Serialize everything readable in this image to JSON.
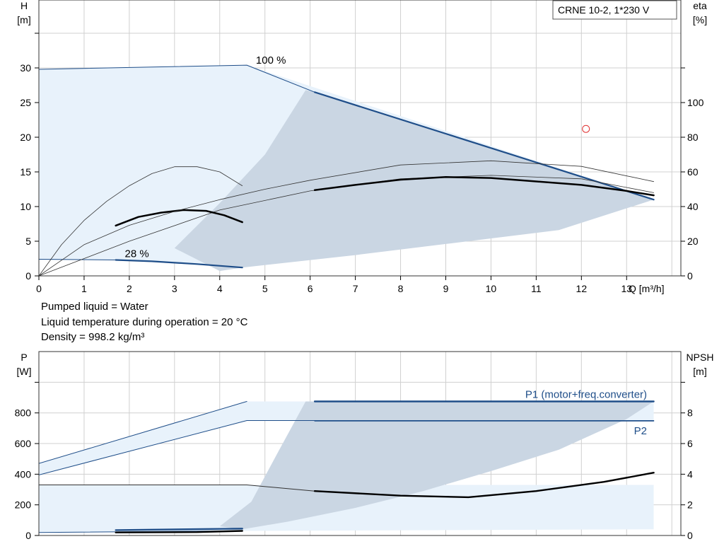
{
  "title_box": "CRNE 10-2, 1*230 V",
  "info_lines": [
    "Pumped liquid = Water",
    "Liquid temperature during operation = 20 °C",
    "Density = 998.2 kg/m³"
  ],
  "colors": {
    "dark_blue": "#1f4e89",
    "light_fill": "#e8f2fb",
    "grey_fill": "#cad6e3",
    "grid": "#d0d0d0",
    "marker": "#e03030"
  },
  "chart_data": [
    {
      "type": "line",
      "name": "performance",
      "ylabel_left": [
        "H",
        "[m]"
      ],
      "ylabel_right": [
        "eta",
        "[%]"
      ],
      "xlabel": "Q [m³/h]",
      "xlim": [
        0,
        14.2
      ],
      "ylim": [
        0,
        35
      ],
      "ylim_right": [
        0,
        140
      ],
      "x_ticks": [
        0,
        1,
        2,
        3,
        4,
        5,
        6,
        7,
        8,
        9,
        10,
        11,
        12,
        13
      ],
      "y_ticks": [
        0,
        5,
        10,
        15,
        20,
        25,
        30
      ],
      "y2_ticks": [
        0,
        20,
        40,
        60,
        80,
        100
      ],
      "speed_labels": [
        {
          "text": "100 %",
          "x": 4.8,
          "y": 30.4
        },
        {
          "text": "28 %",
          "x": 1.9,
          "y": 2.5
        }
      ],
      "range_area": [
        [
          0,
          29.8
        ],
        [
          4.6,
          30.4
        ],
        [
          13.6,
          11.0
        ],
        [
          4.5,
          1.2
        ],
        [
          1.7,
          2.3
        ],
        [
          0,
          2.3
        ]
      ],
      "operating_area": [
        [
          6.1,
          26.5
        ],
        [
          13.6,
          11.0
        ],
        [
          11.5,
          6.6
        ],
        [
          9.0,
          4.6
        ],
        [
          7.0,
          3.0
        ],
        [
          4.5,
          1.2
        ],
        [
          4.0,
          0.7
        ],
        [
          3.0,
          4.0
        ],
        [
          4.0,
          10.5
        ],
        [
          5.0,
          17.5
        ],
        [
          5.9,
          26.8
        ]
      ],
      "series": [
        {
          "name": "H 100%",
          "role": "head-thin",
          "points": [
            [
              0,
              29.8
            ],
            [
              4.6,
              30.4
            ],
            [
              6.1,
              26.5
            ]
          ]
        },
        {
          "name": "H 100% duty",
          "role": "head-duty",
          "points": [
            [
              6.1,
              26.5
            ],
            [
              13.6,
              11.0
            ]
          ]
        },
        {
          "name": "H 28%",
          "role": "head-thin",
          "points": [
            [
              0,
              2.4
            ],
            [
              1.7,
              2.3
            ]
          ]
        },
        {
          "name": "H 28% duty",
          "role": "head-duty",
          "points": [
            [
              1.7,
              2.3
            ],
            [
              2.5,
              2.1
            ],
            [
              3.5,
              1.7
            ],
            [
              4.5,
              1.2
            ]
          ]
        },
        {
          "name": "eta 100%",
          "role": "eta-thin",
          "axis": "right",
          "points": [
            [
              0,
              0
            ],
            [
              2,
              20
            ],
            [
              4,
              38
            ],
            [
              6,
              49
            ],
            [
              8,
              56
            ],
            [
              10,
              58
            ],
            [
              12,
              56
            ],
            [
              13.6,
              48
            ]
          ]
        },
        {
          "name": "eta 100% duty",
          "role": "eta-duty",
          "axis": "right",
          "points": [
            [
              6.1,
              49.5
            ],
            [
              7,
              52.5
            ],
            [
              8,
              55.5
            ],
            [
              9,
              57
            ],
            [
              10,
              56.5
            ],
            [
              11,
              54.5
            ],
            [
              12,
              52.5
            ],
            [
              13,
              49
            ],
            [
              13.6,
              46.5
            ]
          ]
        },
        {
          "name": "eta 28%",
          "role": "eta-thin",
          "axis": "right",
          "points": [
            [
              0,
              0
            ],
            [
              0.5,
              18
            ],
            [
              1,
              32
            ],
            [
              1.5,
              43
            ],
            [
              2,
              52
            ],
            [
              2.5,
              59
            ],
            [
              3,
              63
            ],
            [
              3.5,
              63
            ],
            [
              4,
              60
            ],
            [
              4.5,
              52
            ]
          ]
        },
        {
          "name": "eta 28% duty",
          "role": "eta-duty",
          "axis": "right",
          "points": [
            [
              1.7,
              29
            ],
            [
              2.2,
              34
            ],
            [
              2.7,
              36.5
            ],
            [
              3.2,
              38
            ],
            [
              3.7,
              37.5
            ],
            [
              4.1,
              35
            ],
            [
              4.5,
              31
            ]
          ]
        },
        {
          "name": "H thin low",
          "role": "eta-thin",
          "points": [
            [
              0,
              0
            ],
            [
              1,
              4.5
            ],
            [
              2,
              7.3
            ],
            [
              3,
              9.3
            ],
            [
              4,
              11.0
            ],
            [
              5,
              12.5
            ],
            [
              6,
              13.8
            ],
            [
              8,
              16.0
            ],
            [
              10,
              16.6
            ],
            [
              12,
              15.8
            ],
            [
              13.6,
              13.6
            ]
          ]
        }
      ],
      "markers": [
        {
          "x": 12.1,
          "y": 21.2,
          "shape": "circle"
        }
      ]
    },
    {
      "type": "line",
      "name": "power",
      "ylabel_left": [
        "P",
        "[W]"
      ],
      "ylabel_right": [
        "NPSH",
        "[m]"
      ],
      "xlim": [
        0,
        14.2
      ],
      "ylim": [
        0,
        1000
      ],
      "ylim_right": [
        0,
        10
      ],
      "y_ticks": [
        0,
        200,
        400,
        600,
        800
      ],
      "y2_ticks": [
        0,
        2,
        4,
        6,
        8
      ],
      "series_labels": [
        {
          "text": "P1 (motor+freq.converter)",
          "x": 13.45,
          "y": 898
        },
        {
          "text": "P2",
          "x": 13.45,
          "y": 660
        }
      ],
      "range_area": [
        [
          0,
          470
        ],
        [
          4.6,
          875
        ],
        [
          13.6,
          875
        ],
        [
          13.6,
          750
        ],
        [
          4.6,
          750
        ],
        [
          0,
          395
        ],
        [
          0,
          330
        ],
        [
          4.6,
          330
        ],
        [
          13.6,
          330
        ],
        [
          13.6,
          40
        ],
        [
          4.5,
          30
        ],
        [
          1.7,
          25
        ],
        [
          0,
          20
        ]
      ],
      "operating_area": [
        [
          5.9,
          875
        ],
        [
          13.6,
          875
        ],
        [
          13.0,
          760
        ],
        [
          11.5,
          560
        ],
        [
          10.0,
          420
        ],
        [
          8.5,
          290
        ],
        [
          7.0,
          180
        ],
        [
          5.5,
          90
        ],
        [
          4.5,
          40
        ],
        [
          4.0,
          60
        ],
        [
          4.7,
          220
        ],
        [
          5.3,
          550
        ],
        [
          5.9,
          875
        ]
      ],
      "series": [
        {
          "name": "P1 100%",
          "role": "p-thin",
          "points": [
            [
              0,
              470
            ],
            [
              4.6,
              875
            ]
          ]
        },
        {
          "name": "P1 100% duty",
          "role": "p-duty",
          "points": [
            [
              6.1,
              875
            ],
            [
              13.6,
              875
            ]
          ]
        },
        {
          "name": "P2 100%",
          "role": "p-thin",
          "points": [
            [
              0,
              395
            ],
            [
              4.6,
              750
            ],
            [
              13.6,
              750
            ]
          ]
        },
        {
          "name": "P2 100% duty",
          "role": "p2-duty",
          "points": [
            [
              6.1,
              748
            ],
            [
              13.6,
              748
            ]
          ]
        },
        {
          "name": "NPSH",
          "role": "npsh-thin",
          "axis": "right",
          "points": [
            [
              0,
              3.3
            ],
            [
              4.6,
              3.3
            ],
            [
              6.1,
              2.9
            ]
          ]
        },
        {
          "name": "NPSH duty",
          "role": "npsh-duty",
          "axis": "right",
          "points": [
            [
              6.1,
              2.9
            ],
            [
              8.0,
              2.6
            ],
            [
              9.5,
              2.5
            ],
            [
              11.0,
              2.9
            ],
            [
              12.5,
              3.5
            ],
            [
              13.6,
              4.1
            ]
          ]
        },
        {
          "name": "P low",
          "role": "p-thin",
          "points": [
            [
              0,
              20
            ],
            [
              4.5,
              30
            ]
          ]
        },
        {
          "name": "P low duty",
          "role": "p-duty",
          "points": [
            [
              1.7,
              35
            ],
            [
              4.5,
              45
            ]
          ]
        },
        {
          "name": "P2 low duty",
          "role": "npsh-duty",
          "points": [
            [
              1.7,
              20
            ],
            [
              3.5,
              22
            ],
            [
              4.5,
              30
            ]
          ]
        }
      ]
    }
  ]
}
